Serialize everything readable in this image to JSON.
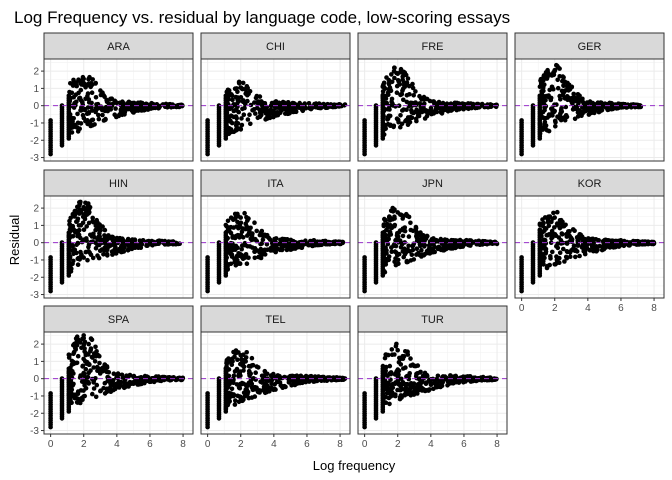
{
  "chart_data": {
    "type": "scatter",
    "title": "Log Frequency vs. residual by language code, low-scoring essays",
    "xlabel": "Log frequency",
    "ylabel": "Residual",
    "xlim": [
      -0.4,
      8.6
    ],
    "ylim": [
      -3.2,
      2.7
    ],
    "x_ticks": [
      0,
      2,
      4,
      6,
      8
    ],
    "y_ticks": [
      -3,
      -2,
      -1,
      0,
      1,
      2
    ],
    "grid": true,
    "facet_layout": "wrap 4 columns",
    "reference_line": {
      "y": 0,
      "style": "dashed",
      "color": "#9932CC"
    },
    "point_color": "#000000",
    "strip_fill": "#D9D9D9",
    "panels": [
      {
        "name": "ARA",
        "max_residual": 1.6,
        "max_x": 8.0
      },
      {
        "name": "CHI",
        "max_residual": 1.1,
        "max_x": 8.3
      },
      {
        "name": "FRE",
        "max_residual": 1.9,
        "max_x": 8.0
      },
      {
        "name": "GER",
        "max_residual": 2.1,
        "max_x": 7.2
      },
      {
        "name": "HIN",
        "max_residual": 2.1,
        "max_x": 7.8
      },
      {
        "name": "ITA",
        "max_residual": 1.5,
        "max_x": 8.2
      },
      {
        "name": "JPN",
        "max_residual": 1.8,
        "max_x": 8.0
      },
      {
        "name": "KOR",
        "max_residual": 1.5,
        "max_x": 8.0
      },
      {
        "name": "SPA",
        "max_residual": 2.4,
        "max_x": 8.0
      },
      {
        "name": "TEL",
        "max_residual": 1.4,
        "max_x": 8.3
      },
      {
        "name": "TUR",
        "max_residual": 1.7,
        "max_x": 8.0
      }
    ]
  }
}
